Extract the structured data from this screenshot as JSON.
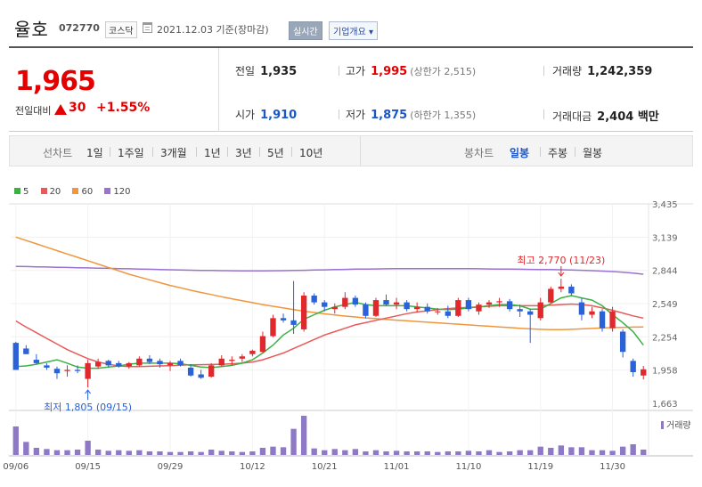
{
  "header": {
    "stock_name": "율호",
    "stock_code": "072770",
    "market": "코스닥",
    "date_text": "2021.12.03  기준(장마감)",
    "realtime_label": "실시간",
    "company_label": "기업개요 ▾"
  },
  "quote": {
    "price": "1,965",
    "diff_label": "전일대비",
    "diff_value": "30",
    "diff_pct": "+1.55%",
    "prev_close_label": "전일",
    "prev_close": "1,935",
    "high_label": "고가",
    "high": "1,995",
    "upper_limit": "(상한가 2,515)",
    "volume_label": "거래량",
    "volume": "1,242,359",
    "open_label": "시가",
    "open": "1,910",
    "low_label": "저가",
    "low": "1,875",
    "lower_limit": "(하한가 1,355)",
    "amount_label": "거래대금",
    "amount": "2,404 백만"
  },
  "periods": {
    "line_label": "선차트",
    "line_items": [
      "1일",
      "1주일",
      "3개월",
      "1년",
      "3년",
      "5년",
      "10년"
    ],
    "candle_label": "봉차트",
    "candle_items": [
      "일봉",
      "주봉",
      "월봉"
    ],
    "active_candle": "일봉"
  },
  "chart_data": {
    "type": "candlestick",
    "legend": [
      {
        "name": "5",
        "color": "#3cb043"
      },
      {
        "name": "20",
        "color": "#e85a5a"
      },
      {
        "name": "60",
        "color": "#f0963c"
      },
      {
        "name": "120",
        "color": "#9a72cf"
      }
    ],
    "y_ticks": [
      "3,435",
      "3,139",
      "2,844",
      "2,549",
      "2,254",
      "1,958",
      "1,663"
    ],
    "ylim": [
      1663,
      3435
    ],
    "x_ticks": [
      "09/06",
      "09/15",
      "09/29",
      "10/12",
      "10/21",
      "11/01",
      "11/10",
      "11/19",
      "11/30"
    ],
    "x_tick_index": [
      0,
      7,
      15,
      23,
      30,
      37,
      44,
      51,
      58
    ],
    "annotation_high": "최고 2,770 (11/23)",
    "annotation_low": "최저 1,805 (09/15)",
    "volume_label": "거래량",
    "candles": [
      [
        2200,
        2210,
        1960,
        1960
      ],
      [
        2150,
        2180,
        2100,
        2100
      ],
      [
        2050,
        2100,
        2010,
        2020
      ],
      [
        2000,
        2020,
        1960,
        1980
      ],
      [
        1970,
        1990,
        1880,
        1930
      ],
      [
        1950,
        2000,
        1900,
        1960
      ],
      [
        1960,
        2000,
        1930,
        1950
      ],
      [
        1880,
        2050,
        1805,
        2020
      ],
      [
        1990,
        2060,
        1970,
        2030
      ],
      [
        2040,
        2050,
        1980,
        2000
      ],
      [
        2020,
        2040,
        1980,
        1990
      ],
      [
        1990,
        2030,
        1970,
        2020
      ],
      [
        2000,
        2080,
        1990,
        2060
      ],
      [
        2060,
        2090,
        2010,
        2030
      ],
      [
        2040,
        2060,
        1980,
        2010
      ],
      [
        2000,
        2040,
        1950,
        2020
      ],
      [
        2040,
        2060,
        1990,
        2000
      ],
      [
        1980,
        2010,
        1900,
        1910
      ],
      [
        1920,
        1960,
        1880,
        1890
      ],
      [
        1900,
        2020,
        1890,
        2000
      ],
      [
        2000,
        2090,
        1990,
        2060
      ],
      [
        2040,
        2080,
        2000,
        2050
      ],
      [
        2060,
        2100,
        2030,
        2080
      ],
      [
        2100,
        2140,
        2080,
        2130
      ],
      [
        2120,
        2300,
        2110,
        2260
      ],
      [
        2260,
        2450,
        2250,
        2420
      ],
      [
        2420,
        2460,
        2380,
        2400
      ],
      [
        2400,
        2750,
        2280,
        2360
      ],
      [
        2320,
        2650,
        2300,
        2620
      ],
      [
        2620,
        2640,
        2540,
        2560
      ],
      [
        2560,
        2580,
        2480,
        2520
      ],
      [
        2500,
        2550,
        2460,
        2520
      ],
      [
        2520,
        2650,
        2500,
        2600
      ],
      [
        2600,
        2620,
        2520,
        2540
      ],
      [
        2540,
        2560,
        2420,
        2440
      ],
      [
        2440,
        2600,
        2430,
        2580
      ],
      [
        2580,
        2630,
        2530,
        2540
      ],
      [
        2540,
        2600,
        2500,
        2560
      ],
      [
        2560,
        2580,
        2480,
        2500
      ],
      [
        2500,
        2560,
        2470,
        2520
      ],
      [
        2520,
        2550,
        2460,
        2480
      ],
      [
        2480,
        2510,
        2450,
        2480
      ],
      [
        2480,
        2530,
        2420,
        2440
      ],
      [
        2440,
        2600,
        2430,
        2580
      ],
      [
        2580,
        2600,
        2480,
        2500
      ],
      [
        2480,
        2560,
        2450,
        2540
      ],
      [
        2540,
        2580,
        2510,
        2560
      ],
      [
        2560,
        2600,
        2520,
        2570
      ],
      [
        2570,
        2590,
        2480,
        2500
      ],
      [
        2500,
        2540,
        2430,
        2480
      ],
      [
        2480,
        2500,
        2200,
        2450
      ],
      [
        2420,
        2600,
        2400,
        2560
      ],
      [
        2560,
        2700,
        2550,
        2680
      ],
      [
        2680,
        2770,
        2650,
        2700
      ],
      [
        2700,
        2720,
        2620,
        2640
      ],
      [
        2560,
        2600,
        2400,
        2450
      ],
      [
        2450,
        2520,
        2420,
        2480
      ],
      [
        2480,
        2500,
        2300,
        2330
      ],
      [
        2330,
        2520,
        2300,
        2480
      ],
      [
        2300,
        2320,
        2070,
        2120
      ],
      [
        2040,
        2060,
        1900,
        1940
      ],
      [
        1910,
        1995,
        1875,
        1965
      ]
    ],
    "volumes": [
      48,
      22,
      12,
      10,
      8,
      8,
      9,
      24,
      9,
      7,
      8,
      7,
      8,
      6,
      6,
      5,
      5,
      6,
      5,
      9,
      7,
      6,
      5,
      6,
      12,
      14,
      13,
      44,
      66,
      11,
      8,
      10,
      8,
      10,
      6,
      8,
      6,
      7,
      6,
      6,
      6,
      5,
      6,
      6,
      7,
      6,
      8,
      5,
      6,
      8,
      8,
      14,
      12,
      16,
      13,
      13,
      8,
      8,
      7,
      14,
      18,
      9
    ],
    "ma5": [
      1990,
      1995,
      2010,
      2030,
      2050,
      2020,
      1985,
      1975,
      1975,
      1985,
      1995,
      2010,
      2020,
      2020,
      2020,
      2020,
      2015,
      2000,
      1985,
      1980,
      1990,
      2000,
      2020,
      2050,
      2110,
      2180,
      2270,
      2330,
      2410,
      2450,
      2490,
      2520,
      2540,
      2560,
      2540,
      2530,
      2530,
      2530,
      2530,
      2520,
      2510,
      2500,
      2495,
      2500,
      2510,
      2520,
      2530,
      2540,
      2540,
      2530,
      2500,
      2500,
      2550,
      2600,
      2620,
      2600,
      2580,
      2530,
      2450,
      2380,
      2300,
      2180
    ],
    "ma20": [
      2395,
      2340,
      2290,
      2240,
      2190,
      2140,
      2100,
      2060,
      2030,
      2010,
      1995,
      1990,
      1990,
      1992,
      1995,
      1998,
      2002,
      2005,
      2006,
      2008,
      2010,
      2014,
      2020,
      2030,
      2050,
      2080,
      2110,
      2150,
      2190,
      2230,
      2270,
      2300,
      2330,
      2360,
      2380,
      2400,
      2420,
      2440,
      2460,
      2475,
      2485,
      2495,
      2505,
      2510,
      2515,
      2520,
      2525,
      2530,
      2530,
      2530,
      2530,
      2530,
      2535,
      2540,
      2545,
      2540,
      2530,
      2510,
      2490,
      2465,
      2440,
      2420
    ],
    "ma60": [
      3140,
      3110,
      3080,
      3050,
      3020,
      2990,
      2960,
      2930,
      2900,
      2870,
      2840,
      2810,
      2785,
      2760,
      2735,
      2710,
      2690,
      2668,
      2648,
      2630,
      2610,
      2592,
      2575,
      2558,
      2540,
      2525,
      2510,
      2495,
      2482,
      2470,
      2458,
      2448,
      2438,
      2430,
      2422,
      2415,
      2408,
      2402,
      2396,
      2390,
      2384,
      2378,
      2372,
      2366,
      2360,
      2354,
      2348,
      2342,
      2336,
      2330,
      2324,
      2320,
      2318,
      2318,
      2320,
      2324,
      2328,
      2332,
      2336,
      2338,
      2340,
      2342
    ],
    "ma120": [
      2880,
      2878,
      2876,
      2874,
      2872,
      2870,
      2868,
      2866,
      2864,
      2862,
      2860,
      2858,
      2856,
      2854,
      2852,
      2850,
      2848,
      2846,
      2844,
      2843,
      2842,
      2841,
      2840,
      2840,
      2840,
      2841,
      2842,
      2843,
      2845,
      2847,
      2849,
      2851,
      2853,
      2855,
      2856,
      2857,
      2858,
      2859,
      2860,
      2860,
      2860,
      2860,
      2860,
      2860,
      2859,
      2858,
      2857,
      2856,
      2855,
      2854,
      2853,
      2852,
      2851,
      2850,
      2848,
      2845,
      2842,
      2838,
      2834,
      2828,
      2820,
      2810
    ]
  }
}
